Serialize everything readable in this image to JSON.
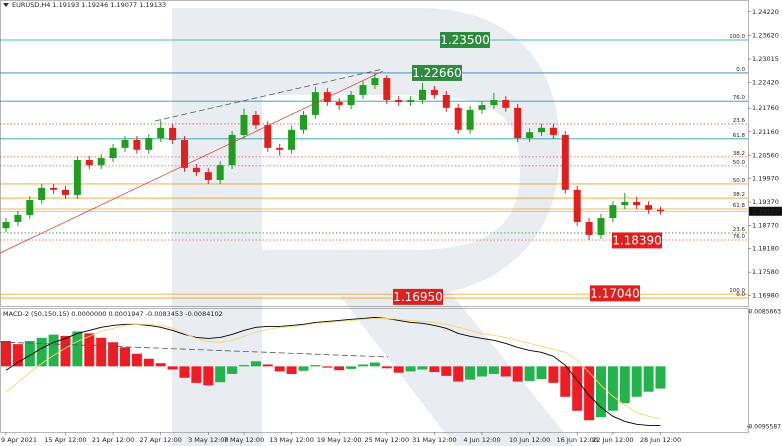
{
  "chart_data": [
    {
      "type": "candlestick",
      "title": "EURUSD,H4  1.19193 1.19246 1.19077 1.19133",
      "categories": [
        "9 Apr 2021",
        null,
        null,
        null,
        null,
        "15 Apr 12:00",
        null,
        null,
        null,
        "21 Apr 12:00",
        null,
        null,
        null,
        "27 Apr 12:00",
        null,
        null,
        null,
        "3 May 12:00",
        null,
        null,
        "7 May 12:00",
        null,
        null,
        null,
        "13 May 12:00",
        null,
        null,
        null,
        "19 May 12:00",
        null,
        null,
        null,
        "25 May 12:00",
        null,
        null,
        null,
        "31 May 12:00",
        null,
        null,
        null,
        "4 Jun 12:00",
        null,
        null,
        null,
        "10 Jun 12:00",
        null,
        null,
        null,
        "16 Jun 12:00",
        null,
        null,
        "22 Jun 12:00",
        null,
        null,
        null,
        "28 Jun 12:00"
      ],
      "open": [
        1.187,
        1.1886,
        1.1904,
        1.1942,
        1.1973,
        1.1968,
        1.1955,
        1.2044,
        1.2031,
        1.2049,
        1.2075,
        1.2095,
        1.207,
        1.21,
        1.2126,
        1.2095,
        1.2024,
        1.2013,
        1.1993,
        1.2031,
        1.2108,
        1.2159,
        1.2133,
        1.2075,
        1.207,
        1.2121,
        1.2159,
        1.2217,
        1.2192,
        1.2184,
        1.221,
        1.2235,
        1.2253,
        1.2197,
        1.2192,
        1.2197,
        1.2223,
        1.221,
        1.2177,
        1.2121,
        1.2172,
        1.2184,
        1.2197,
        1.2177,
        1.21,
        1.2115,
        1.2126,
        1.2108,
        1.1968,
        1.1886,
        1.1853,
        1.1896,
        1.1929,
        1.1937,
        1.1929,
        1.1917
      ],
      "high": [
        1.1896,
        1.1914,
        1.1952,
        1.1983,
        1.1983,
        1.1978,
        1.2054,
        1.2054,
        1.2059,
        1.2085,
        1.2105,
        1.2105,
        1.211,
        1.2145,
        1.2136,
        1.2105,
        1.2034,
        1.2023,
        1.2041,
        1.2118,
        1.2175,
        1.2169,
        1.2143,
        1.2085,
        1.2131,
        1.2169,
        1.223,
        1.2227,
        1.2202,
        1.222,
        1.2245,
        1.2266,
        1.226,
        1.2207,
        1.2207,
        1.224,
        1.2233,
        1.222,
        1.2187,
        1.2182,
        1.2194,
        1.2215,
        1.2207,
        1.2187,
        1.2125,
        1.2136,
        1.2136,
        1.2118,
        1.1978,
        1.1896,
        1.1906,
        1.1939,
        1.196,
        1.195,
        1.1939,
        1.1925
      ],
      "low": [
        1.186,
        1.1876,
        1.1894,
        1.1932,
        1.1958,
        1.1945,
        1.1945,
        1.2021,
        1.2021,
        1.2039,
        1.2065,
        1.206,
        1.206,
        1.209,
        1.2085,
        1.2014,
        1.2003,
        1.1983,
        1.1983,
        1.2021,
        1.2098,
        1.2123,
        1.2065,
        1.2055,
        1.206,
        1.2111,
        1.2149,
        1.2182,
        1.2172,
        1.2174,
        1.22,
        1.2225,
        1.2187,
        1.2182,
        1.2182,
        1.2187,
        1.22,
        1.2167,
        1.2111,
        1.2111,
        1.2162,
        1.2174,
        1.2167,
        1.209,
        1.209,
        1.2105,
        1.2098,
        1.1958,
        1.1876,
        1.184,
        1.1843,
        1.1886,
        1.1919,
        1.1919,
        1.1907,
        1.1905
      ],
      "close": [
        1.1886,
        1.1904,
        1.1942,
        1.1973,
        1.1968,
        1.1955,
        1.2044,
        1.2031,
        1.2049,
        1.2075,
        1.2095,
        1.207,
        1.21,
        1.2126,
        1.2095,
        1.2024,
        1.2013,
        1.1993,
        1.2031,
        1.2108,
        1.2159,
        1.2133,
        1.2075,
        1.207,
        1.2121,
        1.2159,
        1.2217,
        1.2192,
        1.2184,
        1.221,
        1.2235,
        1.2253,
        1.2197,
        1.2192,
        1.2197,
        1.2223,
        1.221,
        1.2177,
        1.2121,
        1.2172,
        1.2184,
        1.2197,
        1.2177,
        1.21,
        1.2115,
        1.2126,
        1.2108,
        1.1968,
        1.1886,
        1.1853,
        1.1896,
        1.1929,
        1.1937,
        1.1929,
        1.1917,
        1.1913
      ],
      "up_color": "#1f9e1f",
      "down_color": "#e0201f",
      "ylim": [
        1.16743,
        1.2452
      ],
      "yticks": [
        {
          "value": 1.2422,
          "label": "1.24220"
        },
        {
          "value": 1.2362,
          "label": "1.23620"
        },
        {
          "value": 1.23015,
          "label": "1.23015"
        },
        {
          "value": 1.2242,
          "label": "1.22420"
        },
        {
          "value": 1.2176,
          "label": "1.21760"
        },
        {
          "value": 1.2116,
          "label": "1.21160"
        },
        {
          "value": 1.2056,
          "label": "1.20560"
        },
        {
          "value": 1.1997,
          "label": "1.19970"
        },
        {
          "value": 1.1937,
          "label": "1.19370"
        },
        {
          "value": 1.1877,
          "label": "1.18770"
        },
        {
          "value": 1.1818,
          "label": "1.18180"
        },
        {
          "value": 1.1758,
          "label": "1.17580"
        },
        {
          "value": 1.1698,
          "label": "1.16980"
        }
      ],
      "levels": [
        {
          "value": 1.235,
          "label": "100.0",
          "color": "#1fa3a3",
          "label_color": "#2e9e2e",
          "style": "solid"
        },
        {
          "value": 1.2266,
          "label": "0.0",
          "color": "#2f7fb8",
          "label_color": "#e0201f",
          "style": "solid"
        },
        {
          "value": 1.2194,
          "label": "76.0",
          "color": "#1fa3a3",
          "label_color": "#2e9e2e",
          "style": "solid"
        },
        {
          "value": 1.2136,
          "label": "23.6",
          "color": "#e05050",
          "label_color": "#e0201f",
          "style": "dotted"
        },
        {
          "value": 1.2098,
          "label": "61.8",
          "color": "#1fa3a3",
          "label_color": "#2e9e2e",
          "style": "solid"
        },
        {
          "value": 1.2052,
          "label": "38.2",
          "color": "#e05050",
          "label_color": "#e0201f",
          "style": "dotted"
        },
        {
          "value": 1.2029,
          "label": "50.0",
          "color": "#e05050",
          "label_color": "#2e9e2e",
          "style": "dotted"
        },
        {
          "value": 1.1983,
          "label": "50.0",
          "color": "#f0a020",
          "label_color": "#e0201f",
          "style": "solid"
        },
        {
          "value": 1.1947,
          "label": "38.2",
          "color": "#f0a020",
          "label_color": "#e08020",
          "style": "solid"
        },
        {
          "value": 1.1919,
          "label": "61.8",
          "color": "#f0a020",
          "label_color": "#e0201f",
          "style": "solid"
        },
        {
          "value": 1.1858,
          "label": "23.6",
          "color": "#2e9e2e",
          "label_color": "#2e9e2e",
          "style": "dotted"
        },
        {
          "value": 1.184,
          "label": "76.0",
          "color": "#e05050",
          "label_color": "#e0201f",
          "style": "dotted"
        },
        {
          "value": 1.1702,
          "label": "100.0",
          "color": "#f0a020",
          "label_color": "#e0201f",
          "style": "solid"
        },
        {
          "value": 1.1692,
          "label": "0.0",
          "color": "#f0a020",
          "label_color": "#e0201f",
          "style": "solid"
        }
      ],
      "annotations": [
        {
          "value": 1.235,
          "label": "1.23500",
          "color": "#2e8b3e"
        },
        {
          "value": 1.2266,
          "label": "1.22660",
          "color": "#2e8b3e"
        },
        {
          "value": 1.1839,
          "label": "1.18390",
          "color": "#e0201f"
        },
        {
          "value": 1.1695,
          "label": "1.16950",
          "color": "#e0201f"
        },
        {
          "value": 1.1704,
          "label": "1.17040",
          "color": "#e0201f"
        }
      ],
      "current_price": {
        "value": 1.19133,
        "label": "1.19133"
      }
    },
    {
      "type": "macd",
      "title": "MACD-2 (50,150,15) 0.0000000 0.0001947 -0.0083453 -0.0084102",
      "histogram": {
        "up_color": "#22b34c",
        "down_color": "#ee1c25",
        "values": [
          0.004,
          0.0035,
          0.004,
          0.0045,
          0.005,
          0.0048,
          0.0055,
          0.0052,
          0.0045,
          0.0038,
          0.003,
          0.002,
          0.0012,
          0.0005,
          -0.0005,
          -0.0018,
          -0.0026,
          -0.003,
          -0.0025,
          -0.0012,
          0.0002,
          0.0008,
          0.0003,
          -0.0008,
          -0.0012,
          -0.0007,
          0.0002,
          -0.0002,
          -0.0006,
          -0.0004,
          0.0003,
          0.0006,
          -0.0003,
          -0.001,
          -0.0008,
          -0.0005,
          -0.0009,
          -0.0015,
          -0.0024,
          -0.0021,
          -0.0016,
          -0.0012,
          -0.0016,
          -0.0024,
          -0.0023,
          -0.002,
          -0.0026,
          -0.0048,
          -0.007,
          -0.0085,
          -0.008,
          -0.007,
          -0.0058,
          -0.0048,
          -0.004,
          -0.0035
        ]
      },
      "lines": [
        {
          "color": "#000000",
          "values": [
            -0.00063,
            0.00063,
            0.00173,
            0.00284,
            0.00378,
            0.00441,
            0.0052,
            0.00567,
            0.00615,
            0.00646,
            0.00662,
            0.00662,
            0.00646,
            0.00615,
            0.00567,
            0.00504,
            0.00457,
            0.00441,
            0.00457,
            0.00504,
            0.00567,
            0.00615,
            0.0063,
            0.0063,
            0.00646,
            0.00662,
            0.00693,
            0.00709,
            0.00725,
            0.00741,
            0.00756,
            0.00772,
            0.00756,
            0.00725,
            0.00693,
            0.00678,
            0.00646,
            0.00599,
            0.0052,
            0.00473,
            0.00441,
            0.0041,
            0.00362,
            0.00299,
            0.00252,
            0.00221,
            0.00158,
            0.00016,
            -0.00221,
            -0.00457,
            -0.00646,
            -0.00788,
            -0.00867,
            -0.00914,
            -0.0093,
            -0.0093
          ]
        },
        {
          "color": "#f5d76e",
          "values": [
            -0.0041,
            -0.00252,
            -0.00095,
            0.00047,
            0.00173,
            0.00284,
            0.00394,
            0.00473,
            0.00552,
            0.00599,
            0.00646,
            0.00662,
            0.00662,
            0.00646,
            0.00599,
            0.0052,
            0.00441,
            0.00394,
            0.00378,
            0.0041,
            0.00473,
            0.00536,
            0.00583,
            0.00615,
            0.0063,
            0.00646,
            0.00678,
            0.00693,
            0.00709,
            0.00725,
            0.00741,
            0.00756,
            0.00756,
            0.00741,
            0.00725,
            0.00709,
            0.00693,
            0.00662,
            0.00615,
            0.00567,
            0.0052,
            0.00489,
            0.00457,
            0.0041,
            0.00362,
            0.00315,
            0.00268,
            0.00221,
            0.00095,
            -0.00095,
            -0.00299,
            -0.00473,
            -0.00615,
            -0.00725,
            -0.00788,
            -0.0082
          ]
        }
      ],
      "ylim": [
        -0.0095587,
        0.0085663
      ],
      "yticks": [
        0.0085663,
        -0.0095587
      ]
    }
  ]
}
